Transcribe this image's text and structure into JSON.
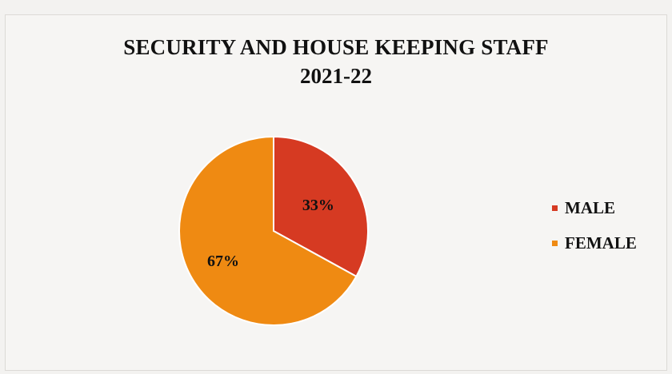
{
  "chart_data": {
    "type": "pie",
    "title": "SECURITY AND HOUSE KEEPING STAFF",
    "subtitle": "2021-22",
    "categories": [
      "MALE",
      "FEMALE"
    ],
    "values": [
      33,
      67
    ],
    "labels": [
      "33%",
      "67%"
    ],
    "colors": [
      "#d63a22",
      "#ef8a12"
    ],
    "legend_position": "right"
  }
}
